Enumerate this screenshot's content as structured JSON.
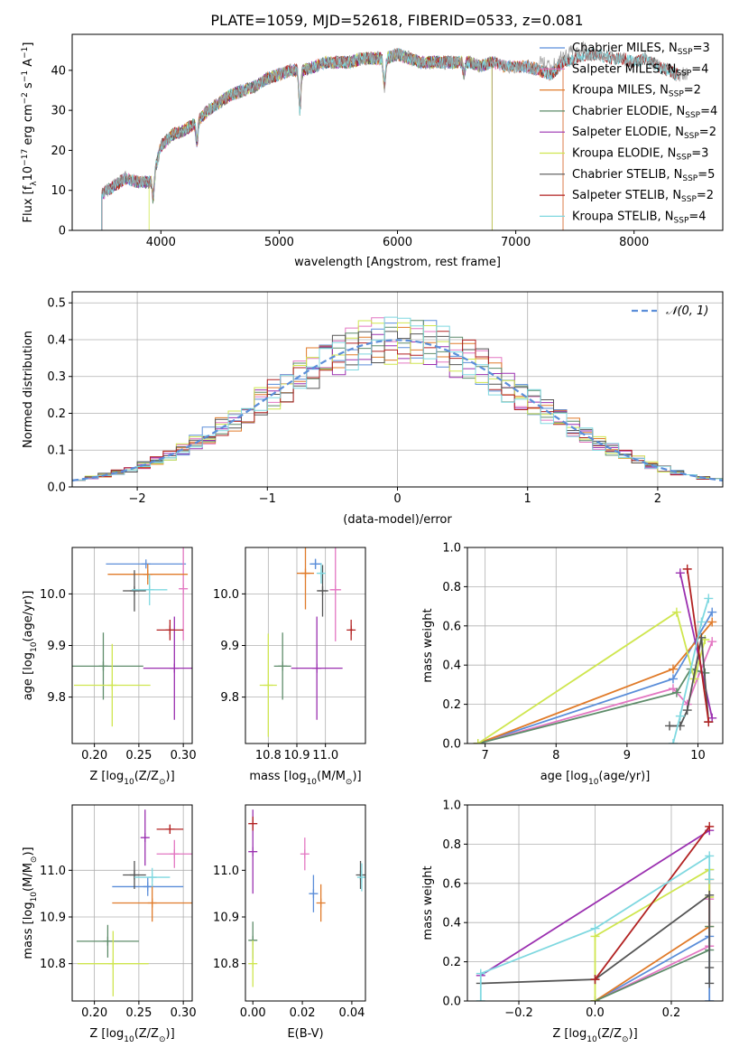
{
  "colors": {
    "Chabrier MILES": "#5b8ed9",
    "Salpeter MILES": "#e377c2",
    "Kroupa MILES": "#e07b2a",
    "Chabrier ELODIE": "#5e8c6a",
    "Salpeter ELODIE": "#9b30b0",
    "Kroupa ELODIE": "#cfe64f",
    "Chabrier STELIB": "#555555",
    "Salpeter STELIB": "#b22222",
    "Kroupa STELIB": "#7fd8e0"
  },
  "chart_data": [
    {
      "id": "spectrum",
      "type": "line",
      "title": "PLATE=1059, MJD=52618, FIBERID=0533, z=0.081",
      "xlabel": "wavelength [Angstrom, rest frame]",
      "ylabel": "Flux [fλ10⁻¹⁷ erg cm⁻² s⁻¹ A⁻¹]",
      "xlim": [
        3250,
        8750
      ],
      "ylim": [
        0,
        49
      ],
      "xticks": [
        4000,
        5000,
        6000,
        7000,
        8000
      ],
      "yticks": [
        0,
        10,
        20,
        30,
        40
      ],
      "grid": false,
      "legend_position": "upper-right",
      "legend": [
        {
          "label": "Chabrier MILES, N",
          "sub": "SSP",
          "tail": "=3"
        },
        {
          "label": "Salpeter MILES, N",
          "sub": "SSP",
          "tail": "=4"
        },
        {
          "label": "Kroupa MILES, N",
          "sub": "SSP",
          "tail": "=2"
        },
        {
          "label": "Chabrier ELODIE, N",
          "sub": "SSP",
          "tail": "=4"
        },
        {
          "label": "Salpeter ELODIE, N",
          "sub": "SSP",
          "tail": "=2"
        },
        {
          "label": "Kroupa ELODIE, N",
          "sub": "SSP",
          "tail": "=3"
        },
        {
          "label": "Chabrier STELIB, N",
          "sub": "SSP",
          "tail": "=5"
        },
        {
          "label": "Salpeter STELIB, N",
          "sub": "SSP",
          "tail": "=2"
        },
        {
          "label": "Kroupa STELIB, N",
          "sub": "SSP",
          "tail": "=4"
        }
      ],
      "continuum": [
        [
          3500,
          9
        ],
        [
          3600,
          11
        ],
        [
          3700,
          13
        ],
        [
          3800,
          12
        ],
        [
          3900,
          12
        ],
        [
          3950,
          15
        ],
        [
          4000,
          21
        ],
        [
          4100,
          24
        ],
        [
          4200,
          25
        ],
        [
          4300,
          27
        ],
        [
          4400,
          30
        ],
        [
          4500,
          32
        ],
        [
          4600,
          34
        ],
        [
          4700,
          35
        ],
        [
          4800,
          36
        ],
        [
          4900,
          38
        ],
        [
          5000,
          39
        ],
        [
          5100,
          40
        ],
        [
          5200,
          40
        ],
        [
          5300,
          41
        ],
        [
          5400,
          42
        ],
        [
          5500,
          42
        ],
        [
          5600,
          42
        ],
        [
          5700,
          43
        ],
        [
          5800,
          43
        ],
        [
          5900,
          43
        ],
        [
          6000,
          44
        ],
        [
          6100,
          43
        ],
        [
          6200,
          42
        ],
        [
          6300,
          42
        ],
        [
          6400,
          42
        ],
        [
          6500,
          42
        ],
        [
          6600,
          42
        ],
        [
          6700,
          41
        ],
        [
          6800,
          42
        ],
        [
          6900,
          41
        ],
        [
          7000,
          41
        ],
        [
          7100,
          41
        ],
        [
          7200,
          40
        ],
        [
          7300,
          39
        ],
        [
          7400,
          42
        ],
        [
          7500,
          43
        ],
        [
          7600,
          44
        ],
        [
          7700,
          44
        ],
        [
          7800,
          43
        ],
        [
          7900,
          43
        ],
        [
          8000,
          42
        ],
        [
          8100,
          43
        ],
        [
          8200,
          41
        ],
        [
          8300,
          40
        ],
        [
          8350,
          39
        ]
      ],
      "absorption_features": [
        {
          "x": 3934,
          "depth": 6
        },
        {
          "x": 4305,
          "depth": 5
        },
        {
          "x": 5175,
          "depth": 10
        },
        {
          "x": 5890,
          "depth": 7
        },
        {
          "x": 6563,
          "depth": 3
        }
      ],
      "model_cutoffs": {
        "ELODIE": 6800,
        "MILES": 7400,
        "Kroupa ELODIE start": 3900
      }
    },
    {
      "id": "residuals",
      "type": "histogram",
      "xlabel": "(data-model)/error",
      "ylabel": "Normed distribution",
      "xlim": [
        -2.5,
        2.5
      ],
      "ylim": [
        0,
        0.53
      ],
      "xticks": [
        -2,
        -1,
        0,
        1,
        2
      ],
      "yticks": [
        0.0,
        0.1,
        0.2,
        0.3,
        0.4,
        0.5
      ],
      "grid": true,
      "bin_width": 0.1,
      "reference": {
        "label": "𝒩(0, 1)",
        "mean": 0,
        "sigma": 1
      },
      "legend_position": "upper-right"
    },
    {
      "id": "metallicity-age",
      "type": "scatter",
      "xlabel": "Z [log10(Z/Z⊙)]",
      "ylabel": "age  [log10(age/yr)]",
      "xlim": [
        0.175,
        0.31
      ],
      "ylim": [
        9.71,
        10.09
      ],
      "xticks": [
        0.2,
        0.25,
        0.3
      ],
      "yticks": [
        9.8,
        9.9,
        10.0
      ],
      "grid": true,
      "points": [
        {
          "series": "Chabrier MILES",
          "x": 0.258,
          "y": 10.058,
          "xerr": 0.045,
          "yerr": 0
        },
        {
          "series": "Salpeter MILES",
          "x": 0.3,
          "y": 10.01,
          "xerr": 0,
          "yerr": 0.1
        },
        {
          "series": "Kroupa MILES",
          "x": 0.26,
          "y": 10.038,
          "xerr": 0.045,
          "yerr": 0.02
        },
        {
          "series": "Chabrier ELODIE",
          "x": 0.21,
          "y": 9.86,
          "xerr": 0.045,
          "yerr": 0.065
        },
        {
          "series": "Salpeter ELODIE",
          "x": 0.29,
          "y": 9.856,
          "xerr": 0.035,
          "yerr": 0.1
        },
        {
          "series": "Kroupa ELODIE",
          "x": 0.22,
          "y": 9.823,
          "xerr": 0.043,
          "yerr": 0.08
        },
        {
          "series": "Chabrier STELIB",
          "x": 0.245,
          "y": 10.006,
          "xerr": 0.013,
          "yerr": 0.04
        },
        {
          "series": "Salpeter STELIB",
          "x": 0.285,
          "y": 9.93,
          "xerr": 0.015,
          "yerr": 0.02
        },
        {
          "series": "Kroupa STELIB",
          "x": 0.262,
          "y": 10.008,
          "xerr": 0.02,
          "yerr": 0.03
        }
      ]
    },
    {
      "id": "mass-age",
      "type": "scatter",
      "xlabel": "mass [log10(M/M⊙)]",
      "ylabel": "",
      "xlim": [
        10.72,
        11.14
      ],
      "ylim": [
        9.71,
        10.09
      ],
      "xticks": [
        10.8,
        10.9,
        11.0
      ],
      "yticks": [
        9.8,
        9.9,
        10.0
      ],
      "grid": true,
      "points": [
        {
          "series": "Chabrier MILES",
          "x": 10.965,
          "y": 10.058,
          "xerr": 0.02,
          "yerr": 0.01
        },
        {
          "series": "Salpeter MILES",
          "x": 11.035,
          "y": 10.008,
          "xerr": 0.02,
          "yerr": 0.1
        },
        {
          "series": "Kroupa MILES",
          "x": 10.93,
          "y": 10.04,
          "xerr": 0.03,
          "yerr": 0.07
        },
        {
          "series": "Chabrier ELODIE",
          "x": 10.85,
          "y": 9.86,
          "xerr": 0.03,
          "yerr": 0.065
        },
        {
          "series": "Salpeter ELODIE",
          "x": 10.97,
          "y": 9.856,
          "xerr": 0.09,
          "yerr": 0.1
        },
        {
          "series": "Kroupa ELODIE",
          "x": 10.8,
          "y": 9.823,
          "xerr": 0.03,
          "yerr": 0.1
        },
        {
          "series": "Chabrier STELIB",
          "x": 10.99,
          "y": 10.006,
          "xerr": 0.02,
          "yerr": 0.05
        },
        {
          "series": "Salpeter STELIB",
          "x": 11.09,
          "y": 9.93,
          "xerr": 0.006,
          "yerr": 0.02
        },
        {
          "series": "Kroupa STELIB",
          "x": 10.985,
          "y": 10.04,
          "xerr": 0.01,
          "yerr": 0.02
        }
      ]
    },
    {
      "id": "age-weights",
      "type": "line",
      "xlabel": "age  [log10(age/yr)]",
      "ylabel": "mass weight",
      "xlim": [
        6.75,
        10.35
      ],
      "ylim": [
        0,
        1.0
      ],
      "xticks": [
        7,
        8,
        9,
        10
      ],
      "yticks": [
        0.0,
        0.2,
        0.4,
        0.6,
        0.8,
        1.0
      ],
      "grid": true,
      "series": [
        {
          "name": "Chabrier MILES",
          "x": [
            6.9,
            9.65,
            10.2
          ],
          "y": [
            0.0,
            0.33,
            0.67
          ]
        },
        {
          "name": "Salpeter MILES",
          "x": [
            6.9,
            9.65,
            9.85,
            10.2
          ],
          "y": [
            0.0,
            0.28,
            0.2,
            0.52
          ]
        },
        {
          "name": "Kroupa MILES",
          "x": [
            6.9,
            9.65,
            10.2
          ],
          "y": [
            0.0,
            0.38,
            0.62
          ]
        },
        {
          "name": "Chabrier ELODIE",
          "x": [
            6.9,
            9.7,
            9.9,
            10.1
          ],
          "y": [
            0.0,
            0.26,
            0.38,
            0.36
          ]
        },
        {
          "name": "Salpeter ELODIE",
          "x": [
            9.75,
            10.2
          ],
          "y": [
            0.87,
            0.13
          ]
        },
        {
          "name": "Kroupa ELODIE",
          "x": [
            6.9,
            9.7,
            9.95,
            10.1
          ],
          "y": [
            0.0,
            0.67,
            0.33,
            0.53
          ]
        },
        {
          "name": "Chabrier STELIB",
          "x": [
            9.6,
            9.75,
            9.85,
            10.05,
            10.15
          ],
          "y": [
            0.09,
            0.09,
            0.17,
            0.54,
            0.11
          ]
        },
        {
          "name": "Salpeter STELIB",
          "x": [
            9.85,
            10.15
          ],
          "y": [
            0.89,
            0.11
          ]
        },
        {
          "name": "Kroupa STELIB",
          "x": [
            9.65,
            9.75,
            10.05,
            10.15
          ],
          "y": [
            0.0,
            0.14,
            0.62,
            0.74
          ]
        }
      ]
    },
    {
      "id": "metallicity-mass",
      "type": "scatter",
      "xlabel": "Z [log10(Z/Z⊙)]",
      "ylabel": "mass [log10(M/M⊙)]",
      "xlim": [
        0.175,
        0.31
      ],
      "ylim": [
        10.72,
        11.14
      ],
      "xticks": [
        0.2,
        0.25,
        0.3
      ],
      "yticks": [
        10.8,
        10.9,
        11.0
      ],
      "grid": true,
      "points": [
        {
          "series": "Chabrier MILES",
          "x": 0.26,
          "y": 10.965,
          "xerr": 0.04,
          "yerr": 0.02
        },
        {
          "series": "Salpeter MILES",
          "x": 0.29,
          "y": 11.035,
          "xerr": 0.02,
          "yerr": 0.03
        },
        {
          "series": "Kroupa MILES",
          "x": 0.265,
          "y": 10.93,
          "xerr": 0.045,
          "yerr": 0.04
        },
        {
          "series": "Chabrier ELODIE",
          "x": 0.215,
          "y": 10.848,
          "xerr": 0.035,
          "yerr": 0.035
        },
        {
          "series": "Salpeter ELODIE",
          "x": 0.257,
          "y": 11.07,
          "xerr": 0,
          "yerr": 0.06
        },
        {
          "series": "Kroupa ELODIE",
          "x": 0.221,
          "y": 10.8,
          "xerr": 0.04,
          "yerr": 0.07
        },
        {
          "series": "Chabrier STELIB",
          "x": 0.245,
          "y": 10.99,
          "xerr": 0.013,
          "yerr": 0.03
        },
        {
          "series": "Salpeter STELIB",
          "x": 0.285,
          "y": 11.088,
          "xerr": 0.015,
          "yerr": 0.01
        },
        {
          "series": "Kroupa STELIB",
          "x": 0.265,
          "y": 10.985,
          "xerr": 0.02,
          "yerr": 0.02
        }
      ]
    },
    {
      "id": "ebv-mass",
      "type": "scatter",
      "xlabel": "E(B-V)",
      "ylabel": "",
      "xlim": [
        -0.003,
        0.0455
      ],
      "ylim": [
        10.72,
        11.14
      ],
      "xticks": [
        0.0,
        0.02,
        0.04
      ],
      "yticks": [
        10.8,
        10.9,
        11.0
      ],
      "grid": false,
      "points": [
        {
          "series": "Chabrier MILES",
          "x": 0.0245,
          "y": 10.95,
          "xerr": 0,
          "yerr": 0.04
        },
        {
          "series": "Salpeter MILES",
          "x": 0.021,
          "y": 11.035,
          "xerr": 0,
          "yerr": 0.035
        },
        {
          "series": "Kroupa MILES",
          "x": 0.0275,
          "y": 10.93,
          "xerr": 0,
          "yerr": 0.04
        },
        {
          "series": "Chabrier ELODIE",
          "x": 0.0,
          "y": 10.85,
          "xerr": 0,
          "yerr": 0.04
        },
        {
          "series": "Salpeter ELODIE",
          "x": 0.0,
          "y": 11.04,
          "xerr": 0,
          "yerr": 0.09
        },
        {
          "series": "Kroupa ELODIE",
          "x": 0.0,
          "y": 10.8,
          "xerr": 0,
          "yerr": 0.05
        },
        {
          "series": "Chabrier STELIB",
          "x": 0.0435,
          "y": 10.99,
          "xerr": 0,
          "yerr": 0.03
        },
        {
          "series": "Salpeter STELIB",
          "x": 0.0,
          "y": 11.1,
          "xerr": 0,
          "yerr": 0.015
        },
        {
          "series": "Kroupa STELIB",
          "x": 0.044,
          "y": 10.985,
          "xerr": 0,
          "yerr": 0.03
        }
      ]
    },
    {
      "id": "metallicity-weights",
      "type": "line",
      "xlabel": "Z [log10(Z/Z⊙)]",
      "ylabel": "mass weight",
      "xlim": [
        -0.335,
        0.335
      ],
      "ylim": [
        0,
        1.0
      ],
      "xticks": [
        -0.2,
        0.0,
        0.2
      ],
      "xticklabels": [
        "−0.2",
        "0.0",
        "0.2"
      ],
      "yticks": [
        0.0,
        0.2,
        0.4,
        0.6,
        0.8,
        1.0
      ],
      "grid": true,
      "series": [
        {
          "name": "Chabrier MILES",
          "x": [
            0.0,
            0.3,
            0.3,
            0.3
          ],
          "y": [
            0.0,
            0.33,
            0.67,
            0.0
          ]
        },
        {
          "name": "Salpeter MILES",
          "x": [
            0.0,
            0.3,
            0.3
          ],
          "y": [
            0.0,
            0.28,
            0.52
          ]
        },
        {
          "name": "Kroupa MILES",
          "x": [
            0.0,
            0.3,
            0.3
          ],
          "y": [
            0.0,
            0.38,
            0.62
          ]
        },
        {
          "name": "Chabrier ELODIE",
          "x": [
            0.0,
            0.3,
            0.3
          ],
          "y": [
            0.0,
            0.26,
            0.38
          ]
        },
        {
          "name": "Salpeter ELODIE",
          "x": [
            -0.3,
            0.3
          ],
          "y": [
            0.13,
            0.87
          ]
        },
        {
          "name": "Kroupa ELODIE",
          "x": [
            0.0,
            0.0,
            0.3,
            0.3
          ],
          "y": [
            0.0,
            0.33,
            0.67,
            0.53
          ]
        },
        {
          "name": "Chabrier STELIB",
          "x": [
            -0.3,
            0.0,
            0.3,
            0.3,
            0.3
          ],
          "y": [
            0.09,
            0.11,
            0.54,
            0.17,
            0.09
          ]
        },
        {
          "name": "Salpeter STELIB",
          "x": [
            0.0,
            0.3
          ],
          "y": [
            0.11,
            0.89
          ]
        },
        {
          "name": "Kroupa STELIB",
          "x": [
            -0.3,
            -0.3,
            0.0,
            0.3,
            0.3
          ],
          "y": [
            0.0,
            0.14,
            0.37,
            0.74,
            0.62
          ]
        }
      ]
    }
  ]
}
